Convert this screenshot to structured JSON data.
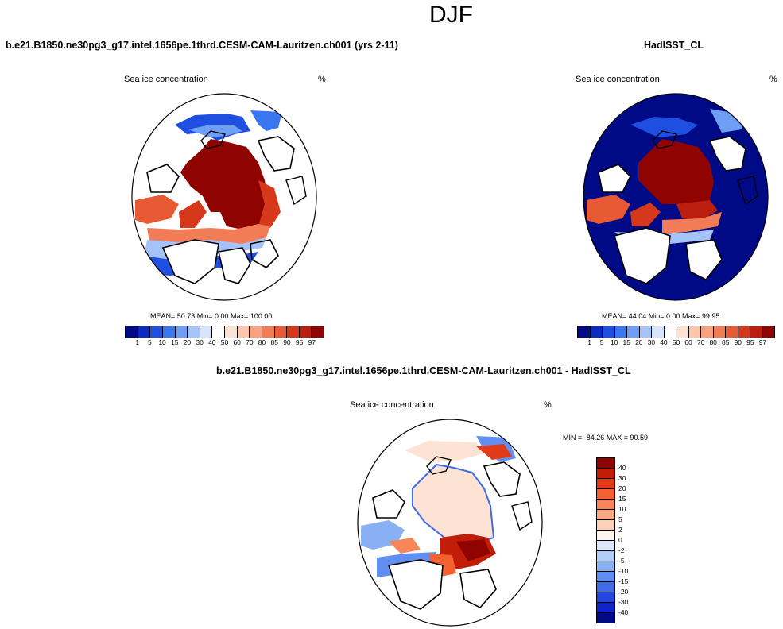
{
  "season": "DJF",
  "colors": {
    "abs_scale": [
      "#000a87",
      "#0a2bc1",
      "#1f4fe0",
      "#3a76f0",
      "#6f9ff5",
      "#a5c3f8",
      "#d6e5fb",
      "#ffffff",
      "#fde3d3",
      "#fbc6aa",
      "#f8a27f",
      "#f27c56",
      "#e85a34",
      "#d6381c",
      "#bb1e0e",
      "#900400"
    ],
    "diff_scale": [
      "#900400",
      "#c11d09",
      "#e03a18",
      "#f2612f",
      "#f7865a",
      "#fba985",
      "#fdd0b8",
      "#fff5ee",
      "#dbe8fb",
      "#b1cdf8",
      "#89b0f3",
      "#608ff0",
      "#3e6ce9",
      "#2447de",
      "#0e23c9",
      "#000a87"
    ],
    "land": "#ffffff",
    "coast": "#000000"
  },
  "panels": {
    "model": {
      "title": "b.e21.B1850.ne30pg3_g17.intel.1656pe.1thrd.CESM-CAM-Lauritzen.ch001 (yrs 2-11)",
      "variable": "Sea ice concentration",
      "units": "%",
      "stats": "MEAN=  50.73  Min=   0.00  Max= 100.00",
      "colorbar_labels": [
        "1",
        "5",
        "10",
        "15",
        "20",
        "30",
        "40",
        "50",
        "60",
        "70",
        "80",
        "85",
        "90",
        "95",
        "97"
      ]
    },
    "obs": {
      "title": "HadISST_CL",
      "variable": "Sea ice concentration",
      "units": "%",
      "stats": "MEAN=  44.04  Min=   0.00  Max=  99.95",
      "colorbar_labels": [
        "1",
        "5",
        "10",
        "15",
        "20",
        "30",
        "40",
        "50",
        "60",
        "70",
        "80",
        "85",
        "90",
        "95",
        "97"
      ]
    },
    "diff": {
      "title": "b.e21.B1850.ne30pg3_g17.intel.1656pe.1thrd.CESM-CAM-Lauritzen.ch001 - HadISST_CL",
      "variable": "Sea ice concentration",
      "units": "%",
      "stats": "MIN = -84.26 MAX =  90.59",
      "colorbar_labels": [
        "40",
        "30",
        "20",
        "15",
        "10",
        "5",
        "2",
        "0",
        "-2",
        "-5",
        "-10",
        "-15",
        "-20",
        "-30",
        "-40"
      ]
    }
  }
}
